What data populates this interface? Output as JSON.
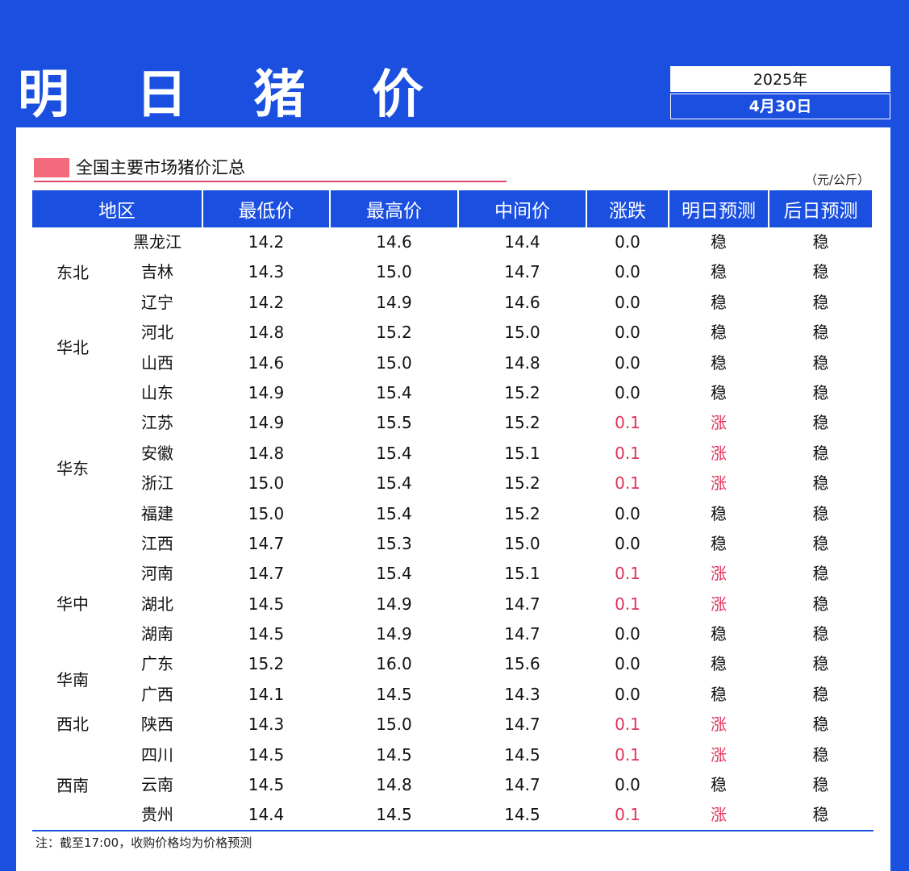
{
  "header": {
    "title": "明 日 猪 价",
    "year": "2025年",
    "date": "4月30日"
  },
  "section": {
    "title": "全国主要市场猪价汇总",
    "unit": "（元/公斤）"
  },
  "columns": [
    "地区",
    "最低价",
    "最高价",
    "中间价",
    "涨跌",
    "明日预测",
    "后日预测"
  ],
  "regions": [
    {
      "name": "东北",
      "start": 0,
      "span": 3
    },
    {
      "name": "华北",
      "start": 3,
      "span": 2
    },
    {
      "name": "华东",
      "start": 5,
      "span": 6
    },
    {
      "name": "华中",
      "start": 11,
      "span": 3
    },
    {
      "name": "华南",
      "start": 14,
      "span": 2
    },
    {
      "name": "西北",
      "start": 16,
      "span": 1
    },
    {
      "name": "西南",
      "start": 17,
      "span": 3
    }
  ],
  "rows": [
    {
      "province": "黑龙江",
      "min": "14.2",
      "max": "14.6",
      "mid": "14.4",
      "change": "0.0",
      "tomorrow": "稳",
      "dayafter": "稳",
      "up": false
    },
    {
      "province": "吉林",
      "min": "14.3",
      "max": "15.0",
      "mid": "14.7",
      "change": "0.0",
      "tomorrow": "稳",
      "dayafter": "稳",
      "up": false
    },
    {
      "province": "辽宁",
      "min": "14.2",
      "max": "14.9",
      "mid": "14.6",
      "change": "0.0",
      "tomorrow": "稳",
      "dayafter": "稳",
      "up": false
    },
    {
      "province": "河北",
      "min": "14.8",
      "max": "15.2",
      "mid": "15.0",
      "change": "0.0",
      "tomorrow": "稳",
      "dayafter": "稳",
      "up": false
    },
    {
      "province": "山西",
      "min": "14.6",
      "max": "15.0",
      "mid": "14.8",
      "change": "0.0",
      "tomorrow": "稳",
      "dayafter": "稳",
      "up": false
    },
    {
      "province": "山东",
      "min": "14.9",
      "max": "15.4",
      "mid": "15.2",
      "change": "0.0",
      "tomorrow": "稳",
      "dayafter": "稳",
      "up": false
    },
    {
      "province": "江苏",
      "min": "14.9",
      "max": "15.5",
      "mid": "15.2",
      "change": "0.1",
      "tomorrow": "涨",
      "dayafter": "稳",
      "up": true
    },
    {
      "province": "安徽",
      "min": "14.8",
      "max": "15.4",
      "mid": "15.1",
      "change": "0.1",
      "tomorrow": "涨",
      "dayafter": "稳",
      "up": true
    },
    {
      "province": "浙江",
      "min": "15.0",
      "max": "15.4",
      "mid": "15.2",
      "change": "0.1",
      "tomorrow": "涨",
      "dayafter": "稳",
      "up": true
    },
    {
      "province": "福建",
      "min": "15.0",
      "max": "15.4",
      "mid": "15.2",
      "change": "0.0",
      "tomorrow": "稳",
      "dayafter": "稳",
      "up": false
    },
    {
      "province": "江西",
      "min": "14.7",
      "max": "15.3",
      "mid": "15.0",
      "change": "0.0",
      "tomorrow": "稳",
      "dayafter": "稳",
      "up": false
    },
    {
      "province": "河南",
      "min": "14.7",
      "max": "15.4",
      "mid": "15.1",
      "change": "0.1",
      "tomorrow": "涨",
      "dayafter": "稳",
      "up": true
    },
    {
      "province": "湖北",
      "min": "14.5",
      "max": "14.9",
      "mid": "14.7",
      "change": "0.1",
      "tomorrow": "涨",
      "dayafter": "稳",
      "up": true
    },
    {
      "province": "湖南",
      "min": "14.5",
      "max": "14.9",
      "mid": "14.7",
      "change": "0.0",
      "tomorrow": "稳",
      "dayafter": "稳",
      "up": false
    },
    {
      "province": "广东",
      "min": "15.2",
      "max": "16.0",
      "mid": "15.6",
      "change": "0.0",
      "tomorrow": "稳",
      "dayafter": "稳",
      "up": false
    },
    {
      "province": "广西",
      "min": "14.1",
      "max": "14.5",
      "mid": "14.3",
      "change": "0.0",
      "tomorrow": "稳",
      "dayafter": "稳",
      "up": false
    },
    {
      "province": "陕西",
      "min": "14.3",
      "max": "15.0",
      "mid": "14.7",
      "change": "0.1",
      "tomorrow": "涨",
      "dayafter": "稳",
      "up": true
    },
    {
      "province": "四川",
      "min": "14.5",
      "max": "14.5",
      "mid": "14.5",
      "change": "0.1",
      "tomorrow": "涨",
      "dayafter": "稳",
      "up": true
    },
    {
      "province": "云南",
      "min": "14.5",
      "max": "14.8",
      "mid": "14.7",
      "change": "0.0",
      "tomorrow": "稳",
      "dayafter": "稳",
      "up": false
    },
    {
      "province": "贵州",
      "min": "14.4",
      "max": "14.5",
      "mid": "14.5",
      "change": "0.1",
      "tomorrow": "涨",
      "dayafter": "稳",
      "up": true
    }
  ],
  "note": "注：截至17:00，收购价格均为价格预测",
  "colors": {
    "brand": "#1a4fe0",
    "up": "#e0335a",
    "marker": "#f26a7c"
  }
}
